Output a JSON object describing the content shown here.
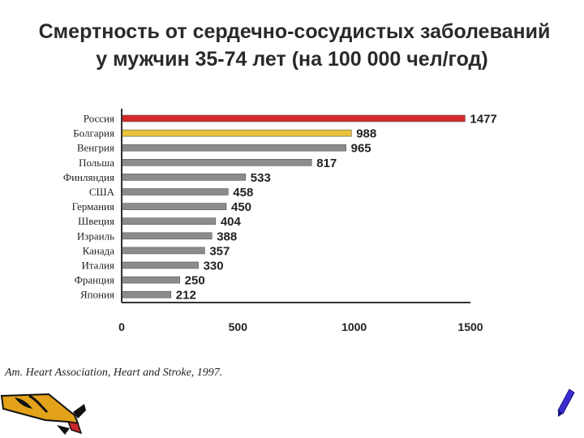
{
  "title": {
    "line1": "Смертность от сердечно-сосудистых заболеваний",
    "line2": "у мужчин 35-74 лет (на 100 000 чел/год)"
  },
  "source": "Am. Heart Association, Heart and Stroke, 1997.",
  "colors": {
    "highlight_primary": "#d42a2a",
    "highlight_secondary": "#e8c23a",
    "default_bar": "#8c8c8c",
    "axis": "#333333"
  },
  "chart_data": {
    "type": "bar",
    "orientation": "horizontal",
    "title": "Смертность от сердечно-сосудистых заболеваний у мужчин 35-74 лет (на 100 000 чел/год)",
    "categories": [
      "Россия",
      "Болгария",
      "Венгрия",
      "Польша",
      "Финляндия",
      "США",
      "Германия",
      "Швеция",
      "Израиль",
      "Канада",
      "Италия",
      "Франция",
      "Япония"
    ],
    "values": [
      1477,
      988,
      965,
      817,
      533,
      458,
      450,
      404,
      388,
      357,
      330,
      250,
      212
    ],
    "bar_colors": [
      "#d42a2a",
      "#e8c23a",
      "#8c8c8c",
      "#8c8c8c",
      "#8c8c8c",
      "#8c8c8c",
      "#8c8c8c",
      "#8c8c8c",
      "#8c8c8c",
      "#8c8c8c",
      "#8c8c8c",
      "#8c8c8c",
      "#8c8c8c"
    ],
    "xlim": [
      0,
      1500
    ],
    "xticks": [
      0,
      500,
      1000,
      1500
    ],
    "grid": false,
    "legend": "none"
  }
}
